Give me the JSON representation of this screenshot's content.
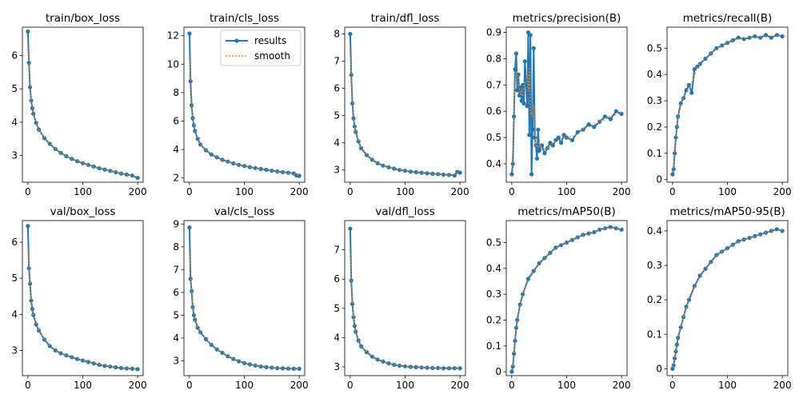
{
  "figure": {
    "title": ""
  },
  "legend": {
    "entries": [
      "results",
      "smooth"
    ]
  },
  "colors": {
    "results": "#1f77b4",
    "smooth": "#ff7f0e"
  },
  "chart_data": [
    {
      "type": "line",
      "title": "train/box_loss",
      "ylim": [
        2.2,
        6.85
      ],
      "yticks": [
        3,
        4,
        5,
        6
      ],
      "xticks": [
        0,
        100,
        200
      ],
      "series": [
        {
          "name": "results",
          "x": [
            0,
            2,
            4,
            6,
            8,
            10,
            15,
            20,
            30,
            40,
            50,
            60,
            70,
            80,
            90,
            100,
            110,
            120,
            130,
            140,
            150,
            160,
            170,
            180,
            190,
            200
          ],
          "values": [
            6.72,
            5.78,
            5.05,
            4.65,
            4.42,
            4.25,
            3.98,
            3.78,
            3.52,
            3.35,
            3.2,
            3.08,
            2.98,
            2.9,
            2.83,
            2.77,
            2.72,
            2.67,
            2.62,
            2.58,
            2.54,
            2.5,
            2.46,
            2.43,
            2.4,
            2.33
          ]
        }
      ]
    },
    {
      "type": "line",
      "title": "train/cls_loss",
      "ylim": [
        1.7,
        12.6
      ],
      "yticks": [
        2,
        4,
        6,
        8,
        10,
        12
      ],
      "xticks": [
        0,
        100,
        200
      ],
      "legend": true,
      "series": [
        {
          "name": "results",
          "x": [
            0,
            2,
            4,
            6,
            8,
            10,
            15,
            20,
            30,
            40,
            50,
            60,
            70,
            80,
            90,
            100,
            110,
            120,
            130,
            140,
            150,
            160,
            170,
            180,
            190,
            195,
            200
          ],
          "values": [
            12.15,
            8.8,
            7.1,
            6.2,
            5.7,
            5.3,
            4.75,
            4.35,
            3.95,
            3.65,
            3.45,
            3.28,
            3.15,
            3.02,
            2.92,
            2.84,
            2.76,
            2.7,
            2.63,
            2.57,
            2.51,
            2.46,
            2.41,
            2.37,
            2.32,
            2.18,
            2.15
          ]
        }
      ]
    },
    {
      "type": "line",
      "title": "train/dfl_loss",
      "ylim": [
        2.55,
        8.25
      ],
      "yticks": [
        3,
        4,
        5,
        6,
        7,
        8
      ],
      "xticks": [
        0,
        100,
        200
      ],
      "series": [
        {
          "name": "results",
          "x": [
            0,
            2,
            4,
            6,
            8,
            10,
            15,
            20,
            30,
            40,
            50,
            60,
            70,
            80,
            90,
            100,
            110,
            120,
            130,
            140,
            150,
            160,
            170,
            180,
            190,
            195,
            200
          ],
          "values": [
            8.0,
            6.5,
            5.45,
            4.9,
            4.6,
            4.4,
            4.05,
            3.8,
            3.55,
            3.38,
            3.25,
            3.16,
            3.1,
            3.05,
            3.0,
            2.97,
            2.94,
            2.92,
            2.9,
            2.88,
            2.86,
            2.85,
            2.83,
            2.82,
            2.8,
            2.93,
            2.9
          ]
        }
      ]
    },
    {
      "type": "line",
      "title": "metrics/precision(B)",
      "ylim": [
        0.33,
        0.92
      ],
      "yticks": [
        0.4,
        0.5,
        0.6,
        0.7,
        0.8,
        0.9
      ],
      "xticks": [
        0,
        100,
        200
      ],
      "series": [
        {
          "name": "results",
          "x": [
            0,
            2,
            4,
            6,
            8,
            10,
            12,
            14,
            16,
            18,
            20,
            22,
            24,
            26,
            28,
            30,
            32,
            34,
            36,
            38,
            40,
            42,
            44,
            46,
            48,
            50,
            55,
            60,
            65,
            70,
            75,
            80,
            85,
            90,
            95,
            100,
            110,
            120,
            130,
            140,
            150,
            160,
            170,
            180,
            190,
            200
          ],
          "values": [
            0.36,
            0.4,
            0.58,
            0.76,
            0.82,
            0.68,
            0.74,
            0.66,
            0.69,
            0.64,
            0.7,
            0.63,
            0.79,
            0.71,
            0.62,
            0.9,
            0.51,
            0.89,
            0.36,
            0.53,
            0.84,
            0.5,
            0.47,
            0.42,
            0.53,
            0.45,
            0.47,
            0.44,
            0.46,
            0.48,
            0.47,
            0.49,
            0.5,
            0.48,
            0.51,
            0.5,
            0.49,
            0.52,
            0.53,
            0.55,
            0.54,
            0.56,
            0.58,
            0.57,
            0.6,
            0.59
          ]
        }
      ]
    },
    {
      "type": "line",
      "title": "metrics/recall(B)",
      "ylim": [
        -0.01,
        0.58
      ],
      "yticks": [
        0.0,
        0.1,
        0.2,
        0.3,
        0.4,
        0.5
      ],
      "xticks": [
        0,
        100,
        200
      ],
      "series": [
        {
          "name": "results",
          "x": [
            0,
            2,
            4,
            6,
            8,
            10,
            15,
            20,
            25,
            30,
            35,
            40,
            45,
            50,
            60,
            70,
            80,
            90,
            100,
            110,
            120,
            130,
            140,
            150,
            160,
            170,
            180,
            190,
            200
          ],
          "values": [
            0.02,
            0.04,
            0.1,
            0.16,
            0.2,
            0.24,
            0.29,
            0.31,
            0.34,
            0.36,
            0.33,
            0.42,
            0.43,
            0.44,
            0.46,
            0.48,
            0.5,
            0.51,
            0.52,
            0.53,
            0.54,
            0.535,
            0.54,
            0.545,
            0.54,
            0.55,
            0.54,
            0.55,
            0.545
          ]
        }
      ]
    },
    {
      "type": "line",
      "title": "val/box_loss",
      "ylim": [
        2.3,
        6.6
      ],
      "yticks": [
        3,
        4,
        5,
        6
      ],
      "xticks": [
        0,
        100,
        200
      ],
      "series": [
        {
          "name": "results",
          "x": [
            0,
            2,
            4,
            6,
            8,
            10,
            15,
            20,
            30,
            40,
            50,
            60,
            70,
            80,
            90,
            100,
            110,
            120,
            130,
            140,
            150,
            160,
            170,
            180,
            190,
            200
          ],
          "values": [
            6.45,
            5.28,
            4.85,
            4.38,
            4.15,
            3.98,
            3.72,
            3.55,
            3.3,
            3.12,
            3.0,
            2.92,
            2.86,
            2.81,
            2.76,
            2.72,
            2.68,
            2.64,
            2.6,
            2.57,
            2.55,
            2.53,
            2.51,
            2.5,
            2.49,
            2.48
          ]
        }
      ]
    },
    {
      "type": "line",
      "title": "val/cls_loss",
      "ylim": [
        2.35,
        9.15
      ],
      "yticks": [
        3,
        4,
        5,
        6,
        7,
        8,
        9
      ],
      "xticks": [
        0,
        100,
        200
      ],
      "series": [
        {
          "name": "results",
          "x": [
            0,
            2,
            4,
            6,
            8,
            10,
            15,
            20,
            30,
            40,
            50,
            60,
            70,
            80,
            90,
            100,
            110,
            120,
            130,
            140,
            150,
            160,
            170,
            180,
            190,
            200
          ],
          "values": [
            8.85,
            6.6,
            6.05,
            5.35,
            5.0,
            4.8,
            4.45,
            4.25,
            3.95,
            3.7,
            3.5,
            3.35,
            3.2,
            3.08,
            2.98,
            2.9,
            2.84,
            2.79,
            2.75,
            2.72,
            2.7,
            2.68,
            2.67,
            2.66,
            2.65,
            2.65
          ]
        }
      ]
    },
    {
      "type": "line",
      "title": "val/dfl_loss",
      "ylim": [
        2.7,
        8.0
      ],
      "yticks": [
        3,
        4,
        5,
        6,
        7
      ],
      "xticks": [
        0,
        100,
        200
      ],
      "series": [
        {
          "name": "results",
          "x": [
            0,
            2,
            4,
            6,
            8,
            10,
            15,
            20,
            30,
            40,
            50,
            60,
            70,
            80,
            90,
            100,
            110,
            120,
            130,
            140,
            150,
            160,
            170,
            180,
            190,
            200
          ],
          "values": [
            7.72,
            5.95,
            5.15,
            4.7,
            4.4,
            4.2,
            3.9,
            3.7,
            3.5,
            3.35,
            3.25,
            3.18,
            3.12,
            3.07,
            3.04,
            3.02,
            3.0,
            2.99,
            2.98,
            2.97,
            2.96,
            2.96,
            2.95,
            2.95,
            2.95,
            2.95
          ]
        }
      ]
    },
    {
      "type": "line",
      "title": "metrics/mAP50(B)",
      "ylim": [
        -0.015,
        0.585
      ],
      "yticks": [
        0.0,
        0.1,
        0.2,
        0.3,
        0.4,
        0.5
      ],
      "xticks": [
        0,
        100,
        200
      ],
      "series": [
        {
          "name": "results",
          "x": [
            0,
            2,
            4,
            6,
            8,
            10,
            15,
            20,
            30,
            40,
            50,
            60,
            70,
            80,
            90,
            100,
            110,
            120,
            130,
            140,
            150,
            160,
            170,
            180,
            190,
            200
          ],
          "values": [
            0.0,
            0.02,
            0.07,
            0.12,
            0.17,
            0.2,
            0.26,
            0.3,
            0.36,
            0.39,
            0.42,
            0.44,
            0.46,
            0.48,
            0.49,
            0.5,
            0.51,
            0.52,
            0.53,
            0.535,
            0.54,
            0.55,
            0.555,
            0.56,
            0.555,
            0.55
          ]
        }
      ]
    },
    {
      "type": "line",
      "title": "metrics/mAP50-95(B)",
      "ylim": [
        -0.02,
        0.43
      ],
      "yticks": [
        0.0,
        0.1,
        0.2,
        0.3,
        0.4
      ],
      "xticks": [
        0,
        100,
        200
      ],
      "series": [
        {
          "name": "results",
          "x": [
            0,
            2,
            4,
            6,
            8,
            10,
            15,
            20,
            25,
            30,
            40,
            50,
            60,
            70,
            80,
            90,
            100,
            110,
            120,
            130,
            140,
            150,
            160,
            170,
            180,
            190,
            200
          ],
          "values": [
            0.0,
            0.01,
            0.03,
            0.05,
            0.07,
            0.09,
            0.12,
            0.15,
            0.18,
            0.2,
            0.24,
            0.27,
            0.29,
            0.31,
            0.33,
            0.34,
            0.35,
            0.36,
            0.37,
            0.375,
            0.38,
            0.385,
            0.39,
            0.395,
            0.4,
            0.405,
            0.4
          ]
        }
      ]
    }
  ]
}
